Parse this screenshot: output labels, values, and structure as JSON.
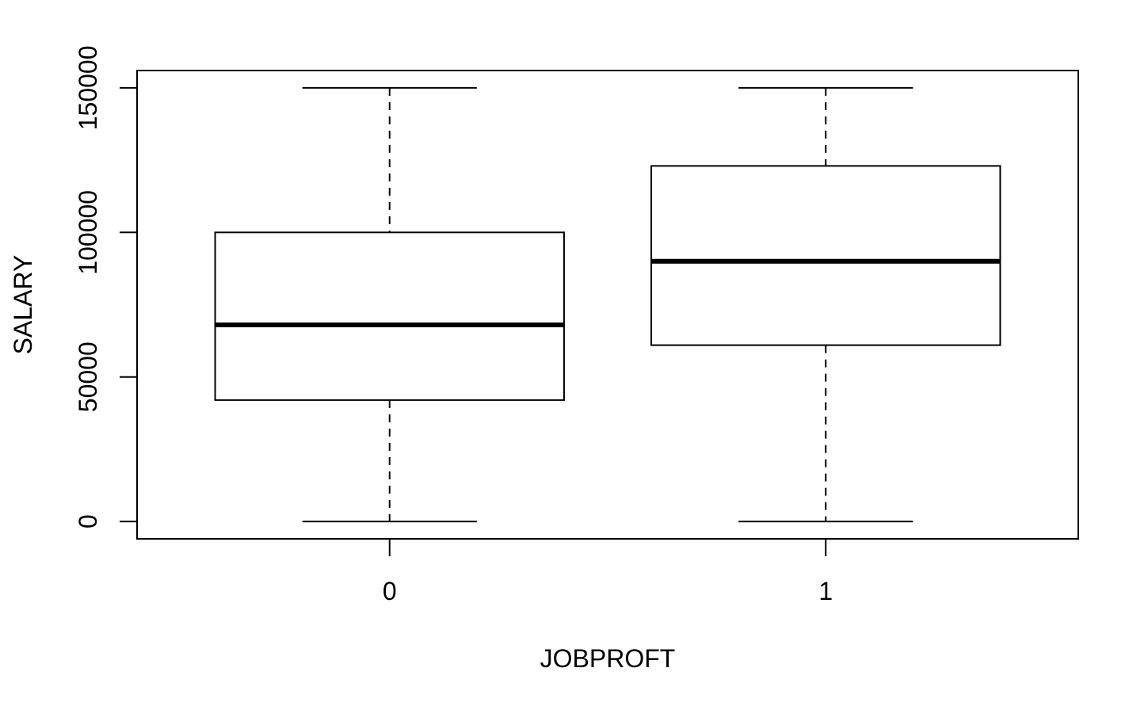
{
  "chart_data": {
    "type": "boxplot",
    "xlabel": "JOBPROFT",
    "ylabel": "SALARY",
    "ylim": [
      -6000,
      156000
    ],
    "yticks": [
      {
        "value": 0,
        "label": "0"
      },
      {
        "value": 50000,
        "label": "50000"
      },
      {
        "value": 100000,
        "label": "100000"
      },
      {
        "value": 150000,
        "label": "150000"
      }
    ],
    "categories": [
      "0",
      "1"
    ],
    "boxes": [
      {
        "category": "0",
        "min": 0,
        "q1": 42000,
        "median": 68000,
        "q3": 100000,
        "max": 150000
      },
      {
        "category": "1",
        "min": 0,
        "q1": 61000,
        "median": 90000,
        "q3": 123000,
        "max": 150000
      }
    ],
    "grid": false,
    "colors": {
      "stroke": "#000000",
      "background": "#ffffff"
    }
  }
}
